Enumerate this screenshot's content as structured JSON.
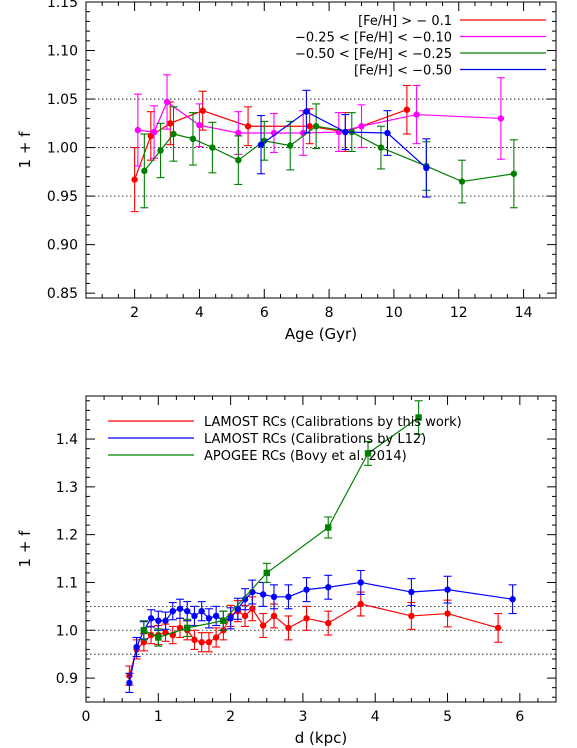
{
  "chart_data": [
    {
      "type": "line",
      "xlabel": "Age (Gyr)",
      "ylabel": "1 + f",
      "xlim": [
        0.5,
        15
      ],
      "ylim": [
        0.845,
        1.15
      ],
      "xticks": [
        2,
        4,
        6,
        8,
        10,
        12,
        14
      ],
      "yticks": [
        0.85,
        0.9,
        0.95,
        1.0,
        1.05,
        1.1,
        1.15
      ],
      "ytick_labels": [
        "0.85",
        "0.90",
        "0.95",
        "1.00",
        "1.05",
        "1.10",
        "1.15"
      ],
      "ref_lines": [
        0.95,
        1.0,
        1.05
      ],
      "legend_position": "top-right",
      "legend_align": "right",
      "series": [
        {
          "name": "[Fe/H] > − 0.1",
          "color": "#ff0000",
          "marker": "circle",
          "x": [
            2.0,
            2.5,
            3.1,
            4.1,
            5.5,
            7.4,
            8.5,
            10.4
          ],
          "y": [
            0.967,
            1.012,
            1.025,
            1.038,
            1.022,
            1.022,
            1.016,
            1.039
          ],
          "err": [
            0.033,
            0.025,
            0.022,
            0.02,
            0.02,
            0.018,
            0.02,
            0.025
          ]
        },
        {
          "name": "−0.25 < [Fe/H] < −0.10",
          "color": "#ff00ff",
          "marker": "circle",
          "x": [
            2.1,
            2.6,
            3.0,
            4.0,
            5.2,
            6.3,
            7.2,
            8.3,
            9.0,
            10.7,
            13.3
          ],
          "y": [
            1.018,
            1.016,
            1.047,
            1.023,
            1.015,
            1.015,
            1.015,
            1.016,
            1.022,
            1.034,
            1.03
          ],
          "err": [
            0.037,
            0.027,
            0.028,
            0.022,
            0.022,
            0.02,
            0.023,
            0.02,
            0.022,
            0.03,
            0.042
          ]
        },
        {
          "name": "−0.50 < [Fe/H] < −0.25",
          "color": "#008000",
          "marker": "circle",
          "x": [
            2.3,
            2.8,
            3.2,
            3.8,
            4.4,
            5.2,
            6.0,
            6.8,
            7.6,
            8.7,
            9.6,
            11.0,
            12.1,
            13.7
          ],
          "y": [
            0.976,
            0.997,
            1.014,
            1.009,
            1.0,
            0.987,
            1.007,
            1.002,
            1.022,
            1.016,
            1.0,
            0.981,
            0.965,
            0.973
          ],
          "err": [
            0.038,
            0.028,
            0.028,
            0.027,
            0.026,
            0.025,
            0.02,
            0.025,
            0.023,
            0.02,
            0.022,
            0.025,
            0.022,
            0.035
          ]
        },
        {
          "name": "[Fe/H] < −0.50",
          "color": "#0000ff",
          "marker": "circle",
          "x": [
            5.9,
            7.3,
            8.5,
            9.8,
            11.0
          ],
          "y": [
            1.003,
            1.037,
            1.016,
            1.015,
            0.979
          ],
          "err": [
            0.03,
            0.022,
            0.018,
            0.023,
            0.03
          ]
        }
      ]
    },
    {
      "type": "line",
      "xlabel": "d (kpc)",
      "ylabel": "1 + f",
      "xlim": [
        0,
        6.5
      ],
      "ylim": [
        0.85,
        1.49
      ],
      "xticks": [
        0,
        1,
        2,
        3,
        4,
        5,
        6
      ],
      "yticks": [
        0.9,
        1.0,
        1.1,
        1.2,
        1.3,
        1.4
      ],
      "ytick_labels": [
        "0.9",
        "1.0",
        "1.1",
        "1.2",
        "1.3",
        "1.4"
      ],
      "ref_lines": [
        0.95,
        1.0,
        1.05
      ],
      "legend_position": "top-left",
      "legend_align": "left",
      "series": [
        {
          "name": "LAMOST RCs (Calibrations by this work)",
          "color": "#ff0000",
          "marker": "circle",
          "x": [
            0.6,
            0.7,
            0.8,
            0.9,
            1.0,
            1.1,
            1.2,
            1.3,
            1.4,
            1.5,
            1.6,
            1.7,
            1.8,
            1.9,
            2.0,
            2.1,
            2.2,
            2.3,
            2.45,
            2.6,
            2.8,
            3.05,
            3.35,
            3.8,
            4.5,
            5.0,
            5.7
          ],
          "y": [
            0.905,
            0.96,
            0.975,
            0.99,
            0.99,
            0.995,
            0.99,
            1.005,
            1.0,
            0.98,
            0.975,
            0.975,
            0.985,
            1.0,
            1.03,
            1.04,
            1.03,
            1.045,
            1.01,
            1.03,
            1.005,
            1.025,
            1.015,
            1.055,
            1.03,
            1.035,
            1.005
          ],
          "err": [
            0.02,
            0.02,
            0.018,
            0.018,
            0.02,
            0.018,
            0.018,
            0.02,
            0.02,
            0.02,
            0.02,
            0.02,
            0.02,
            0.02,
            0.022,
            0.022,
            0.022,
            0.025,
            0.025,
            0.025,
            0.025,
            0.025,
            0.025,
            0.025,
            0.028,
            0.028,
            0.03
          ]
        },
        {
          "name": "LAMOST RCs (Calibrations by L12)",
          "color": "#0000ff",
          "marker": "circle",
          "x": [
            0.6,
            0.7,
            0.8,
            0.9,
            1.0,
            1.1,
            1.2,
            1.3,
            1.4,
            1.5,
            1.6,
            1.7,
            1.8,
            1.9,
            2.0,
            2.1,
            2.2,
            2.3,
            2.45,
            2.6,
            2.8,
            3.05,
            3.35,
            3.8,
            4.5,
            5.0,
            5.9
          ],
          "y": [
            0.89,
            0.965,
            1.0,
            1.025,
            1.02,
            1.02,
            1.04,
            1.045,
            1.04,
            1.03,
            1.04,
            1.025,
            1.03,
            1.02,
            1.025,
            1.045,
            1.065,
            1.08,
            1.075,
            1.07,
            1.07,
            1.085,
            1.09,
            1.1,
            1.08,
            1.085,
            1.065
          ],
          "err": [
            0.02,
            0.02,
            0.018,
            0.018,
            0.02,
            0.018,
            0.018,
            0.02,
            0.02,
            0.02,
            0.02,
            0.02,
            0.02,
            0.02,
            0.022,
            0.022,
            0.022,
            0.025,
            0.025,
            0.025,
            0.025,
            0.025,
            0.025,
            0.025,
            0.028,
            0.028,
            0.03
          ]
        },
        {
          "name": "APOGEE RCs (Bovy et al. 2014)",
          "color": "#008000",
          "marker": "square",
          "x": [
            0.8,
            1.0,
            1.4,
            1.9,
            2.5,
            3.35,
            3.9,
            4.6
          ],
          "y": [
            1.0,
            0.985,
            1.005,
            1.02,
            1.12,
            1.215,
            1.37,
            1.445
          ],
          "err": [
            0.02,
            0.018,
            0.018,
            0.02,
            0.02,
            0.022,
            0.025,
            0.035
          ]
        }
      ]
    }
  ]
}
